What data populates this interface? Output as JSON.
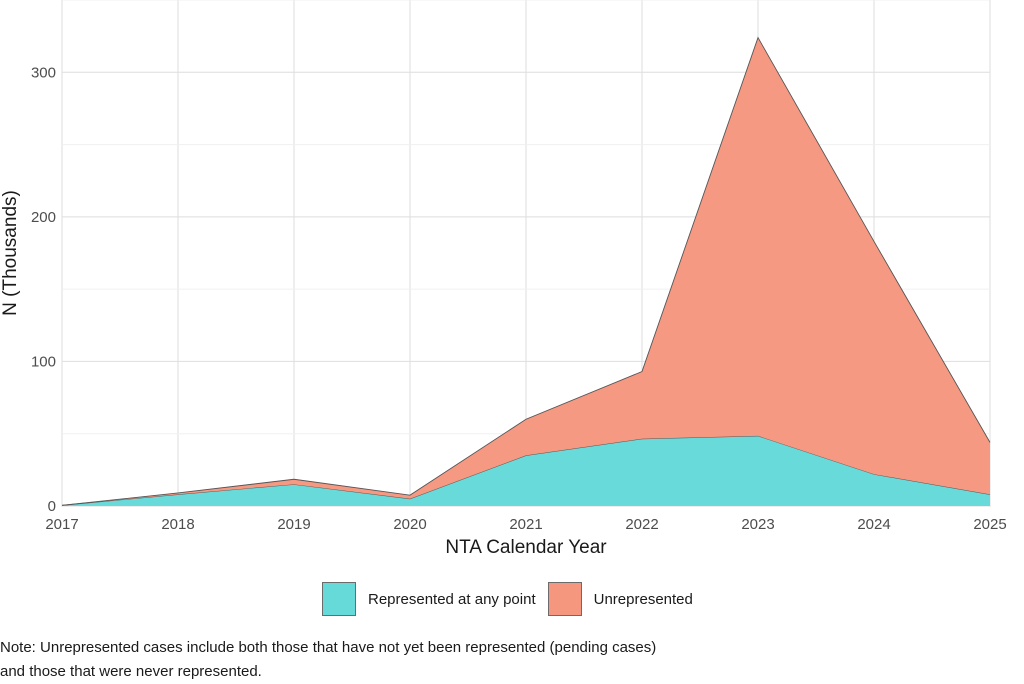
{
  "chart_data": {
    "type": "area",
    "stacked": true,
    "x": [
      "2017",
      "2018",
      "2019",
      "2020",
      "2021",
      "2022",
      "2023",
      "2024",
      "2025"
    ],
    "series": [
      {
        "name": "Represented at any point",
        "color": "#66D9D9",
        "values": [
          0.5,
          8,
          15,
          5,
          35,
          46.5,
          48.5,
          22,
          8
        ]
      },
      {
        "name": "Unrepresented",
        "color": "#F5977F",
        "values": [
          0,
          1,
          3.5,
          2.5,
          25,
          46.5,
          275.5,
          161,
          36
        ]
      }
    ],
    "xlabel": "NTA Calendar Year",
    "ylabel": "N (Thousands)",
    "yticks": [
      0,
      100,
      200,
      300
    ],
    "ylim": [
      0,
      350
    ],
    "grid": true,
    "legend_position": "bottom"
  },
  "note": {
    "line1": "Note: Unrepresented cases include both those that have not yet been represented (pending cases)",
    "line2": "and those that were never represented."
  }
}
